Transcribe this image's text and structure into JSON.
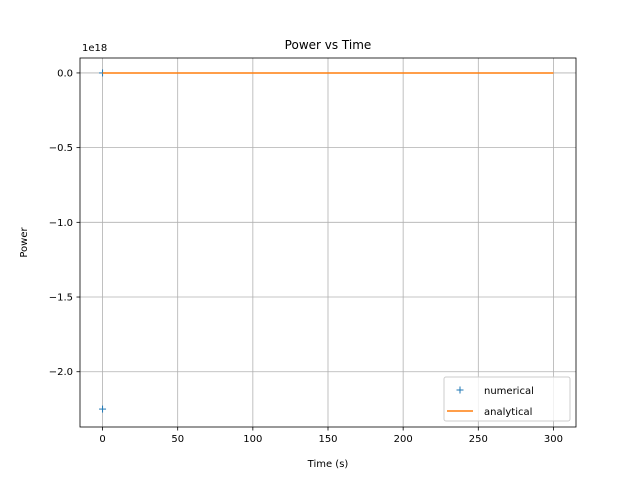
{
  "chart_data": {
    "type": "line",
    "title": "Power vs Time",
    "xlabel": "Time (s)",
    "ylabel": "Power",
    "y_offset_label": "1e18",
    "xlim": [
      -15,
      315
    ],
    "ylim": [
      -2.37,
      0.1
    ],
    "y_scale_factor": 1e+18,
    "x_ticks": [
      0,
      50,
      100,
      150,
      200,
      250,
      300
    ],
    "x_tick_labels": [
      "0",
      "50",
      "100",
      "150",
      "200",
      "250",
      "300"
    ],
    "y_ticks": [
      0.0,
      -0.5,
      -1.0,
      -1.5,
      -2.0
    ],
    "y_tick_labels": [
      "0.0",
      "−0.5",
      "−1.0",
      "−1.5",
      "−2.0"
    ],
    "grid": true,
    "legend_position": "lower-right",
    "series": [
      {
        "name": "numerical",
        "style": "marker-plus",
        "color": "#1f77b4",
        "x": [
          0,
          0
        ],
        "y": [
          0.0,
          -2.25
        ]
      },
      {
        "name": "analytical",
        "style": "line",
        "color": "#ff7f0e",
        "x": [
          0,
          300
        ],
        "y": [
          0.0,
          0.0
        ]
      }
    ]
  }
}
